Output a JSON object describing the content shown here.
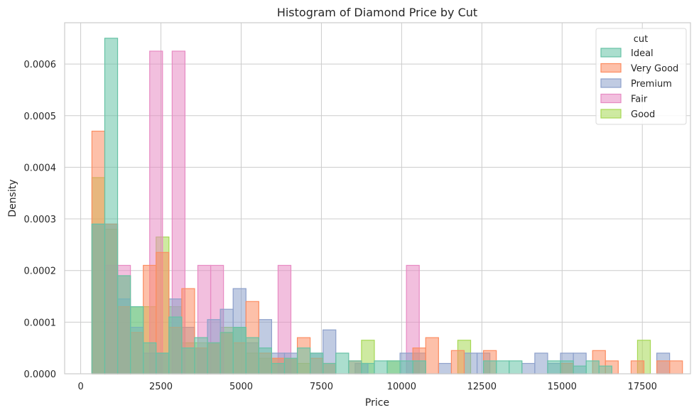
{
  "chart_data": {
    "type": "histogram",
    "title": "Histogram of Diamond Price by Cut",
    "xlabel": "Price",
    "ylabel": "Density",
    "xlim": [
      -500,
      19000
    ],
    "ylim": [
      0,
      0.00068
    ],
    "xticks": [
      0,
      2500,
      5000,
      7500,
      10000,
      12500,
      15000,
      17500
    ],
    "xtick_labels": [
      "0",
      "2500",
      "5000",
      "7500",
      "10000",
      "12500",
      "15000",
      "17500"
    ],
    "yticks": [
      0,
      0.0001,
      0.0002,
      0.0003,
      0.0004,
      0.0005,
      0.0006
    ],
    "ytick_labels": [
      "0.0000",
      "0.0001",
      "0.0002",
      "0.0003",
      "0.0004",
      "0.0005",
      "0.0006"
    ],
    "grid": true,
    "legend": {
      "title": "cut",
      "placement": "top-right"
    },
    "series": [
      {
        "name": "Ideal",
        "color": "#66c2a5",
        "bins": [
          [
            350,
            750,
            0.00029
          ],
          [
            750,
            1150,
            0.00065
          ],
          [
            1150,
            1550,
            0.00019
          ],
          [
            1550,
            1950,
            0.00013
          ],
          [
            1950,
            2350,
            6e-05
          ],
          [
            2350,
            2750,
            4e-05
          ],
          [
            2750,
            3150,
            0.00011
          ],
          [
            3150,
            3550,
            5e-05
          ],
          [
            3550,
            3950,
            7e-05
          ],
          [
            3950,
            4350,
            6e-05
          ],
          [
            4350,
            4750,
            8e-05
          ],
          [
            4750,
            5150,
            9e-05
          ],
          [
            5150,
            5550,
            7e-05
          ],
          [
            5550,
            5950,
            5e-05
          ],
          [
            5950,
            6350,
            2e-05
          ],
          [
            6350,
            6750,
            3e-05
          ],
          [
            6750,
            7150,
            5e-05
          ],
          [
            7150,
            7550,
            4e-05
          ],
          [
            7550,
            7950,
            2e-05
          ],
          [
            7950,
            8350,
            4e-05
          ],
          [
            8350,
            8750,
            2.5e-05
          ],
          [
            8750,
            9150,
            2e-05
          ],
          [
            9150,
            9550,
            2.5e-05
          ],
          [
            9550,
            9950,
            2.5e-05
          ],
          [
            9950,
            10350,
            2.5e-05
          ],
          [
            10350,
            10750,
            2.5e-05
          ],
          [
            12550,
            12950,
            2.5e-05
          ],
          [
            12950,
            13350,
            2.5e-05
          ],
          [
            13350,
            13750,
            2.5e-05
          ],
          [
            14550,
            14950,
            2.5e-05
          ],
          [
            14950,
            15350,
            2.5e-05
          ],
          [
            15350,
            15750,
            1.5e-05
          ],
          [
            15750,
            16150,
            2.5e-05
          ],
          [
            16150,
            16550,
            1.5e-05
          ]
        ]
      },
      {
        "name": "Very Good",
        "color": "#fc8d62",
        "bins": [
          [
            350,
            750,
            0.00047
          ],
          [
            750,
            1150,
            0.00029
          ],
          [
            1150,
            1550,
            0.00013
          ],
          [
            1550,
            1950,
            8e-05
          ],
          [
            1950,
            2350,
            0.00021
          ],
          [
            2350,
            2750,
            0.000235
          ],
          [
            2750,
            3150,
            9e-05
          ],
          [
            3150,
            3550,
            0.000165
          ],
          [
            3550,
            3950,
            5e-05
          ],
          [
            3950,
            4350,
            6e-05
          ],
          [
            4350,
            4750,
            8e-05
          ],
          [
            4750,
            5150,
            6e-05
          ],
          [
            5150,
            5550,
            0.00014
          ],
          [
            5550,
            5950,
            4e-05
          ],
          [
            5950,
            6350,
            3e-05
          ],
          [
            6350,
            6750,
            3e-05
          ],
          [
            6750,
            7150,
            7e-05
          ],
          [
            7150,
            7550,
            3e-05
          ],
          [
            7550,
            7950,
            2e-05
          ],
          [
            8350,
            8750,
            2.5e-05
          ],
          [
            10350,
            10750,
            5e-05
          ],
          [
            10750,
            11150,
            7e-05
          ],
          [
            11550,
            11950,
            4.5e-05
          ],
          [
            12550,
            12950,
            4.5e-05
          ],
          [
            14950,
            15350,
            2e-05
          ],
          [
            15950,
            16350,
            4.5e-05
          ],
          [
            16350,
            16750,
            2.5e-05
          ],
          [
            17150,
            17550,
            2.5e-05
          ],
          [
            17950,
            18350,
            2.5e-05
          ],
          [
            18350,
            18750,
            2.5e-05
          ]
        ]
      },
      {
        "name": "Premium",
        "color": "#8da0cb",
        "bins": [
          [
            350,
            750,
            0.00029
          ],
          [
            750,
            1150,
            0.00029
          ],
          [
            1150,
            1550,
            0.000145
          ],
          [
            1550,
            1950,
            9e-05
          ],
          [
            1950,
            2350,
            4e-05
          ],
          [
            2350,
            2750,
            4e-05
          ],
          [
            2750,
            3150,
            0.000145
          ],
          [
            3150,
            3550,
            9e-05
          ],
          [
            3550,
            3950,
            5e-05
          ],
          [
            3950,
            4350,
            0.000105
          ],
          [
            4350,
            4750,
            0.000125
          ],
          [
            4750,
            5150,
            0.000165
          ],
          [
            5150,
            5550,
            6e-05
          ],
          [
            5550,
            5950,
            0.000105
          ],
          [
            5950,
            6350,
            4e-05
          ],
          [
            6350,
            6750,
            4e-05
          ],
          [
            7150,
            7550,
            4e-05
          ],
          [
            7550,
            7950,
            8.5e-05
          ],
          [
            8550,
            8950,
            2e-05
          ],
          [
            9950,
            10350,
            4e-05
          ],
          [
            10350,
            10750,
            4e-05
          ],
          [
            11150,
            11550,
            2e-05
          ],
          [
            11950,
            12350,
            4e-05
          ],
          [
            12350,
            12750,
            4e-05
          ],
          [
            13750,
            14150,
            2e-05
          ],
          [
            14150,
            14550,
            4e-05
          ],
          [
            14550,
            14950,
            2e-05
          ],
          [
            14950,
            15350,
            4e-05
          ],
          [
            15350,
            15750,
            4e-05
          ],
          [
            17950,
            18350,
            4e-05
          ]
        ]
      },
      {
        "name": "Fair",
        "color": "#e78ac3",
        "bins": [
          [
            750,
            1150,
            0.00021
          ],
          [
            1150,
            1550,
            0.00021
          ],
          [
            2150,
            2550,
            0.000625
          ],
          [
            2850,
            3250,
            0.000625
          ],
          [
            3650,
            4050,
            0.00021
          ],
          [
            4050,
            4450,
            0.00021
          ],
          [
            6150,
            6550,
            0.00021
          ],
          [
            10150,
            10550,
            0.00021
          ]
        ]
      },
      {
        "name": "Good",
        "color": "#a6d854",
        "bins": [
          [
            350,
            750,
            0.00038
          ],
          [
            750,
            1150,
            0.00028
          ],
          [
            1150,
            1550,
            0.00019
          ],
          [
            1550,
            1950,
            0.00013
          ],
          [
            1950,
            2350,
            0.00013
          ],
          [
            2350,
            2750,
            0.000265
          ],
          [
            2750,
            3150,
            0.00013
          ],
          [
            3150,
            3550,
            6e-05
          ],
          [
            3550,
            3950,
            6e-05
          ],
          [
            3950,
            4350,
            6e-05
          ],
          [
            4350,
            4750,
            9e-05
          ],
          [
            4750,
            5150,
            9e-05
          ],
          [
            5150,
            5550,
            4e-05
          ],
          [
            5550,
            5950,
            3e-05
          ],
          [
            5950,
            6350,
            3e-05
          ],
          [
            6350,
            6750,
            3e-05
          ],
          [
            6750,
            7150,
            2e-05
          ],
          [
            8750,
            9150,
            6.5e-05
          ],
          [
            9550,
            9950,
            2.5e-05
          ],
          [
            11750,
            12150,
            6.5e-05
          ],
          [
            17350,
            17750,
            6.5e-05
          ]
        ]
      }
    ],
    "draw_order": [
      "Good",
      "Fair",
      "Premium",
      "Very Good",
      "Ideal"
    ]
  }
}
